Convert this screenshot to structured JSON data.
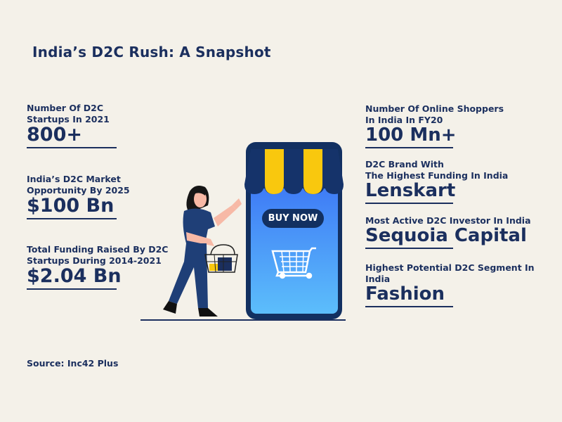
{
  "title": "India’s D2C Rush: A Snapshot",
  "left_stats": [
    {
      "label_lines": [
        "Number Of D2C",
        "Startups In 2021"
      ],
      "value": "800+"
    },
    {
      "label_lines": [
        "India’s D2C Market",
        "Opportunity By 2025"
      ],
      "value": "$100 Bn"
    },
    {
      "label_lines": [
        "Total Funding Raised By D2C",
        "Startups During 2014-2021"
      ],
      "value": "$2.04 Bn"
    }
  ],
  "right_stats": [
    {
      "label_lines": [
        "Number Of Online Shoppers",
        "In India In FY20"
      ],
      "value": "100 Mn+"
    },
    {
      "label_lines": [
        "D2C Brand With",
        "The Highest Funding In India"
      ],
      "value": "Lenskart"
    },
    {
      "label_lines": [
        "Most Active D2C Investor In India"
      ],
      "value": "Sequoia Capital"
    },
    {
      "label_lines": [
        "Highest Potential D2C Segment In India"
      ],
      "value": "Fashion"
    }
  ],
  "illustration": {
    "button_label": "BUY NOW",
    "icons": [
      "storefront-phone",
      "shopping-cart",
      "shopping-basket",
      "woman-shopper"
    ]
  },
  "source": "Source: Inc42 Plus",
  "colors": {
    "background": "#f4f1e9",
    "navy": "#1b2f5e",
    "yellow": "#f9c80e",
    "screen_top": "#3f7cf6",
    "screen_bottom": "#5cbefb"
  }
}
